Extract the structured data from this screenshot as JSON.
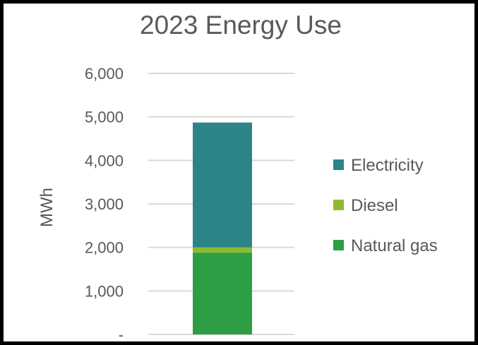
{
  "chart_data": {
    "type": "bar",
    "stacked": true,
    "title": "2023 Energy Use",
    "xlabel": "",
    "ylabel": "MWh",
    "ylim": [
      0,
      6000
    ],
    "y_ticks": [
      0,
      1000,
      2000,
      3000,
      4000,
      5000,
      6000
    ],
    "y_tick_labels": [
      "-",
      "1,000",
      "2,000",
      "3,000",
      "4,000",
      "5,000",
      "6,000"
    ],
    "grid": true,
    "legend_position": "right",
    "categories": [
      "2023"
    ],
    "series": [
      {
        "name": "Natural gas",
        "values": [
          1880
        ],
        "color": "#2E9E45"
      },
      {
        "name": "Diesel",
        "values": [
          120
        ],
        "color": "#8DBB2F"
      },
      {
        "name": "Electricity",
        "values": [
          2870
        ],
        "color": "#2C8489"
      }
    ],
    "legend_order": [
      "Electricity",
      "Diesel",
      "Natural gas"
    ]
  }
}
